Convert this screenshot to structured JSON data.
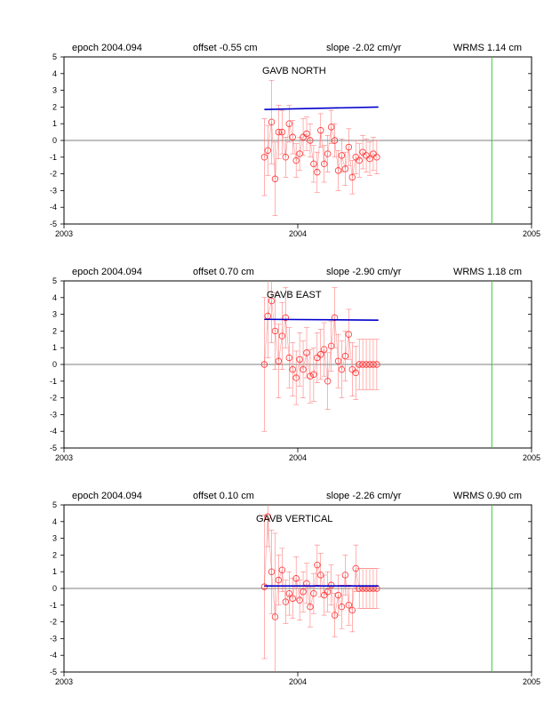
{
  "chart_data": [
    {
      "type": "scatter",
      "title": "GAVB NORTH",
      "header": {
        "epoch": "epoch 2004.094",
        "offset": "offset -0.55 cm",
        "slope": "slope -2.02 cm/yr",
        "wrms": "WRMS 1.14 cm"
      },
      "xlim": [
        2003,
        2005
      ],
      "ylim": [
        -5,
        5
      ],
      "x_ticks": [
        "2003",
        "2004",
        "2005"
      ],
      "y_ticks": [
        "5",
        "4",
        "3",
        "2",
        "1",
        "0",
        "-1",
        "-2",
        "-3",
        "-4",
        "-5"
      ],
      "x": [
        2003.857,
        2003.872,
        2003.888,
        2003.903,
        2003.918,
        2003.933,
        2003.948,
        2003.963,
        2003.978,
        2003.993,
        2004.008,
        2004.023,
        2004.038,
        2004.053,
        2004.068,
        2004.083,
        2004.098,
        2004.113,
        2004.128,
        2004.143,
        2004.158,
        2004.173,
        2004.188,
        2004.203,
        2004.218,
        2004.233,
        2004.248,
        2004.263,
        2004.278,
        2004.293,
        2004.308,
        2004.323,
        2004.338
      ],
      "values": [
        -1.0,
        -0.6,
        1.1,
        -2.3,
        0.5,
        0.5,
        -1.0,
        1.0,
        0.2,
        -1.2,
        -0.8,
        0.2,
        0.4,
        0.0,
        -1.4,
        -1.9,
        0.6,
        -1.4,
        -0.8,
        0.8,
        0.0,
        -1.8,
        -0.9,
        -1.7,
        -0.4,
        -2.2,
        -1.0,
        -1.2,
        -0.7,
        -0.9,
        -1.1,
        -0.8,
        -1.0
      ],
      "errors": [
        2.3,
        1.5,
        2.5,
        2.2,
        1.6,
        1.3,
        1.2,
        1.1,
        1.0,
        1.0,
        1.0,
        1.1,
        1.0,
        1.0,
        1.1,
        1.2,
        1.0,
        1.1,
        1.1,
        1.0,
        1.0,
        1.2,
        1.0,
        1.0,
        1.1,
        1.0,
        1.0,
        1.0,
        1.0,
        1.0,
        1.0,
        1.0,
        1.0
      ],
      "trend": {
        "x": [
          2003.857,
          2004.345
        ],
        "y": [
          1.85,
          2.0
        ]
      },
      "marker_line_x": 2004.83
    },
    {
      "type": "scatter",
      "title": "GAVB EAST",
      "header": {
        "epoch": "epoch 2004.094",
        "offset": "offset 0.70 cm",
        "slope": "slope -2.90 cm/yr",
        "wrms": "WRMS 1.18 cm"
      },
      "xlim": [
        2003,
        2005
      ],
      "ylim": [
        -5,
        5
      ],
      "x_ticks": [
        "2003",
        "2004",
        "2005"
      ],
      "y_ticks": [
        "5",
        "4",
        "3",
        "2",
        "1",
        "0",
        "-1",
        "-2",
        "-3",
        "-4",
        "-5"
      ],
      "x": [
        2003.857,
        2003.872,
        2003.888,
        2003.903,
        2003.918,
        2003.933,
        2003.948,
        2003.963,
        2003.978,
        2003.993,
        2004.008,
        2004.023,
        2004.038,
        2004.053,
        2004.068,
        2004.083,
        2004.098,
        2004.113,
        2004.128,
        2004.143,
        2004.158,
        2004.173,
        2004.188,
        2004.203,
        2004.218,
        2004.233,
        2004.248,
        2004.263,
        2004.278,
        2004.293,
        2004.308,
        2004.323,
        2004.338
      ],
      "values": [
        0.0,
        2.9,
        3.8,
        2.0,
        0.2,
        1.7,
        2.8,
        0.4,
        -0.3,
        -0.8,
        0.3,
        -0.3,
        0.7,
        -0.7,
        -0.6,
        0.4,
        0.6,
        0.9,
        -1.0,
        1.1,
        2.8,
        0.2,
        -0.3,
        0.5,
        1.8,
        -0.3,
        -0.5,
        0.0,
        0.0,
        0.0,
        0.0,
        0.0,
        0.0
      ],
      "errors": [
        4.0,
        2.5,
        2.5,
        2.3,
        2.2,
        2.0,
        1.8,
        1.8,
        1.6,
        1.6,
        1.6,
        1.7,
        1.5,
        1.6,
        1.6,
        1.5,
        1.5,
        1.6,
        1.7,
        1.5,
        1.8,
        1.6,
        1.7,
        1.5,
        1.5,
        1.6,
        1.6,
        1.5,
        1.5,
        1.5,
        1.5,
        1.5,
        1.5
      ],
      "trend": {
        "x": [
          2003.857,
          2004.345
        ],
        "y": [
          2.7,
          2.65
        ]
      },
      "marker_line_x": 2004.83
    },
    {
      "type": "scatter",
      "title": "GAVB VERTICAL",
      "header": {
        "epoch": "epoch 2004.094",
        "offset": "offset 0.10 cm",
        "slope": "slope -2.26 cm/yr",
        "wrms": "WRMS 0.90 cm"
      },
      "xlim": [
        2003,
        2005
      ],
      "ylim": [
        -5,
        5
      ],
      "x_ticks": [
        "2003",
        "2004",
        "2005"
      ],
      "y_ticks": [
        "5",
        "4",
        "3",
        "2",
        "1",
        "0",
        "-1",
        "-2",
        "-3",
        "-4",
        "-5"
      ],
      "x": [
        2003.857,
        2003.872,
        2003.888,
        2003.903,
        2003.918,
        2003.933,
        2003.948,
        2003.963,
        2003.978,
        2003.993,
        2004.008,
        2004.023,
        2004.038,
        2004.053,
        2004.068,
        2004.083,
        2004.098,
        2004.113,
        2004.128,
        2004.143,
        2004.158,
        2004.173,
        2004.188,
        2004.203,
        2004.218,
        2004.233,
        2004.248,
        2004.263,
        2004.278,
        2004.293,
        2004.308,
        2004.323,
        2004.338
      ],
      "values": [
        0.1,
        4.3,
        1.0,
        -1.7,
        0.5,
        1.1,
        -0.8,
        -0.3,
        -0.6,
        0.6,
        -0.7,
        -0.2,
        0.3,
        -1.1,
        -0.3,
        1.4,
        0.8,
        -0.4,
        -0.2,
        0.2,
        -1.6,
        -0.4,
        -1.1,
        0.8,
        -1.0,
        -1.3,
        1.2,
        0.0,
        0.0,
        0.0,
        0.0,
        0.0,
        0.0
      ],
      "errors": [
        4.3,
        1.8,
        2.5,
        5.0,
        1.5,
        1.3,
        1.3,
        1.3,
        1.2,
        1.3,
        1.2,
        1.2,
        1.2,
        1.2,
        1.2,
        1.2,
        1.3,
        1.2,
        1.2,
        1.2,
        1.3,
        1.2,
        1.3,
        1.2,
        1.2,
        1.3,
        1.4,
        1.2,
        1.2,
        1.2,
        1.2,
        1.2,
        1.2
      ],
      "trend": {
        "x": [
          2003.857,
          2004.345
        ],
        "y": [
          0.15,
          0.15
        ]
      },
      "marker_line_x": 2004.83
    }
  ]
}
